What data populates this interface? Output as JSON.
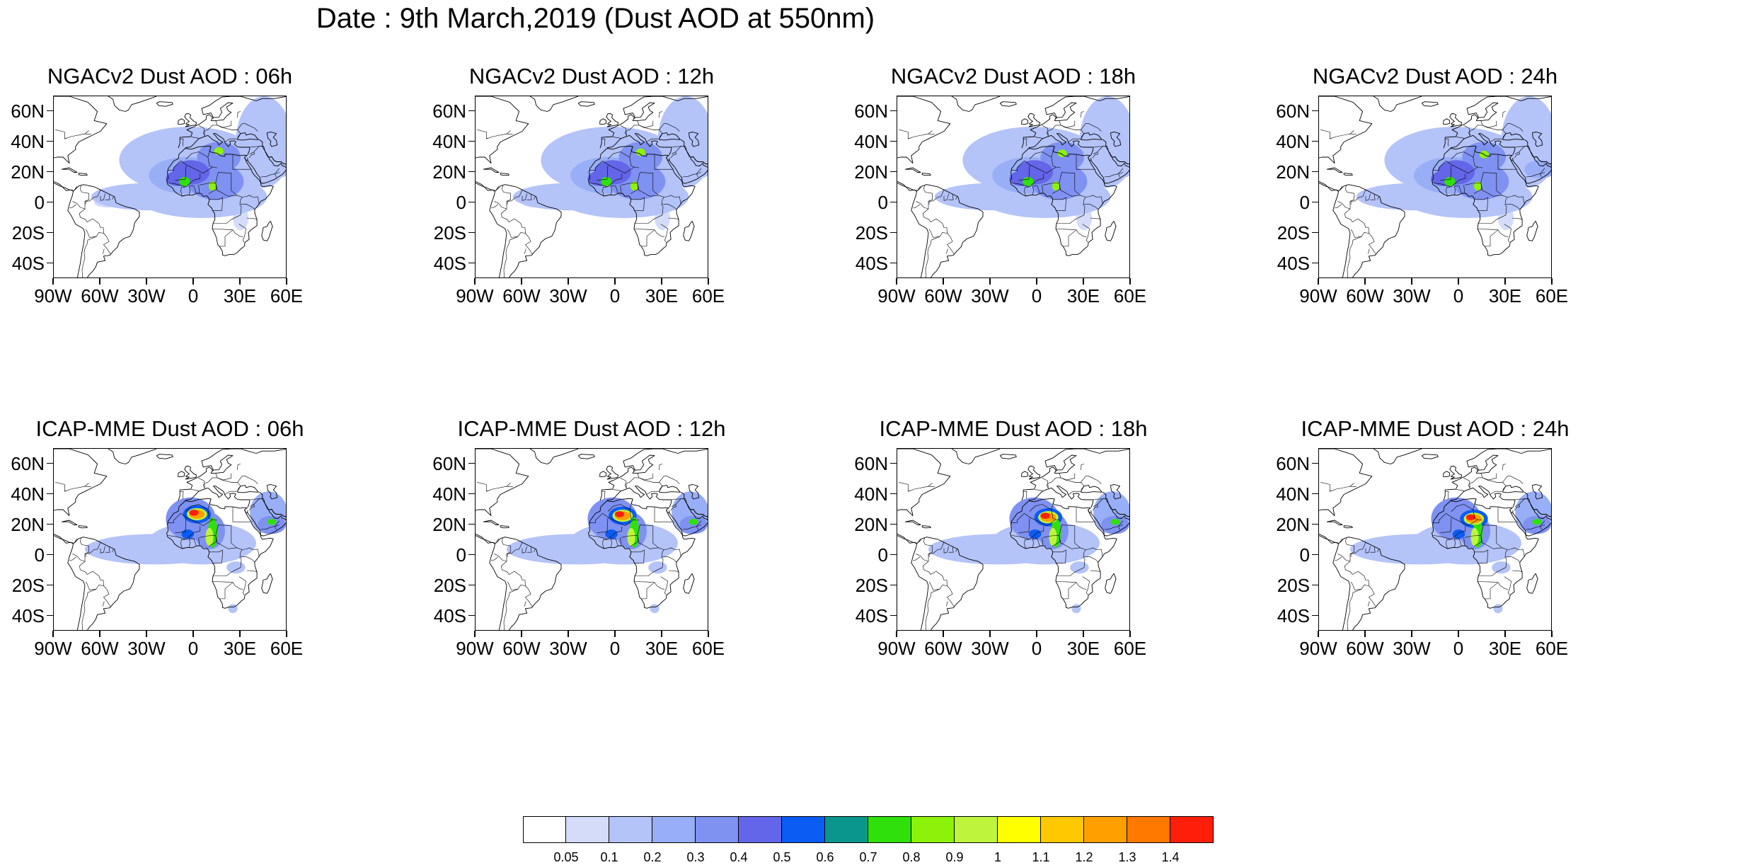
{
  "main_title": "Date : 9th March,2019 (Dust AOD at 550nm)",
  "lat_labels": [
    "60N",
    "40N",
    "20N",
    "0",
    "20S",
    "40S"
  ],
  "lon_labels": [
    "90W",
    "60W",
    "30W",
    "0",
    "30E",
    "60E"
  ],
  "map_extent": {
    "lon_min": -90,
    "lon_max": 60,
    "lat_min": -50,
    "lat_max": 70
  },
  "panels": [
    {
      "title": "NGACv2 Dust AOD : 06h",
      "model": "NGACv2",
      "forecast_hour": "06h"
    },
    {
      "title": "NGACv2 Dust AOD : 12h",
      "model": "NGACv2",
      "forecast_hour": "12h"
    },
    {
      "title": "NGACv2 Dust AOD : 18h",
      "model": "NGACv2",
      "forecast_hour": "18h"
    },
    {
      "title": "NGACv2 Dust AOD : 24h",
      "model": "NGACv2",
      "forecast_hour": "24h"
    },
    {
      "title": "ICAP-MME Dust AOD : 06h",
      "model": "ICAP-MME",
      "forecast_hour": "06h"
    },
    {
      "title": "ICAP-MME Dust AOD : 12h",
      "model": "ICAP-MME",
      "forecast_hour": "12h"
    },
    {
      "title": "ICAP-MME Dust AOD : 18h",
      "model": "ICAP-MME",
      "forecast_hour": "18h"
    },
    {
      "title": "ICAP-MME Dust AOD : 24h",
      "model": "ICAP-MME",
      "forecast_hour": "24h"
    }
  ],
  "colorbar": {
    "labels": [
      "0.05",
      "0.1",
      "0.2",
      "0.3",
      "0.4",
      "0.5",
      "0.6",
      "0.7",
      "0.8",
      "0.9",
      "1",
      "1.1",
      "1.2",
      "1.3",
      "1.4"
    ],
    "colors": [
      "#ffffff",
      "#d4dcfa",
      "#b4c3f8",
      "#98aef6",
      "#7f91f1",
      "#6366e8",
      "#0a5cf2",
      "#0a968c",
      "#2fe00a",
      "#8cf20a",
      "#bef53c",
      "#ffff00",
      "#ffc800",
      "#ff9f00",
      "#ff7800",
      "#ff1e0a"
    ]
  }
}
